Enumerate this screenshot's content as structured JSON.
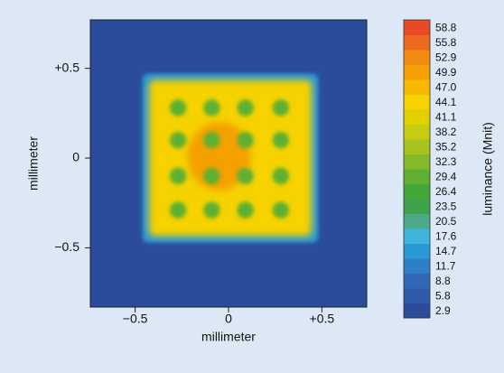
{
  "chart_data": {
    "type": "heatmap",
    "x_label": "millimeter",
    "y_label": "millimeter",
    "xlim": [
      -0.74,
      0.74
    ],
    "ylim": [
      -0.83,
      0.77
    ],
    "xticks": [
      {
        "value": -0.5,
        "label": "−0.5"
      },
      0,
      {
        "value": 0.5,
        "label": "+0.5"
      }
    ],
    "yticks": [
      {
        "value": -0.5,
        "label": "−0.5"
      },
      0,
      {
        "value": 0.5,
        "label": "+0.5"
      }
    ],
    "background_value": 4,
    "square": {
      "x": [
        -0.46,
        0.48
      ],
      "y": [
        -0.47,
        0.47
      ],
      "edge_value": 16,
      "value": 45
    },
    "hotspot": {
      "x": [
        -0.22,
        0.12
      ],
      "y": [
        -0.18,
        0.2
      ],
      "value": 51
    },
    "spots": {
      "x": [
        -0.27,
        -0.09,
        0.09,
        0.28
      ],
      "y": [
        0.28,
        0.1,
        -0.1,
        -0.29
      ],
      "r": 0.035,
      "value": 28
    },
    "colorbar": {
      "title": "luminance (Mnit)",
      "clim": [
        1.45,
        60.25
      ],
      "ticks": [
        2.9,
        5.8,
        8.8,
        11.7,
        14.7,
        17.6,
        20.5,
        23.5,
        26.4,
        29.4,
        32.3,
        35.2,
        38.2,
        41.1,
        44.1,
        {
          "value": 47,
          "label": "47.0"
        },
        49.9,
        52.9,
        55.8,
        58.8
      ],
      "colors": [
        "#2b4c9b",
        "#2f5aa8",
        "#3168b5",
        "#2d7fc6",
        "#2a98d4",
        "#3fb4dd",
        "#4aaa8a",
        "#3ea24a",
        "#44a838",
        "#5fb030",
        "#86b92a",
        "#a8c21e",
        "#c8cc10",
        "#e0d000",
        "#f5d200",
        "#f7b800",
        "#f4a000",
        "#f08a10",
        "#ec6a1e",
        "#e84a26"
      ]
    }
  }
}
